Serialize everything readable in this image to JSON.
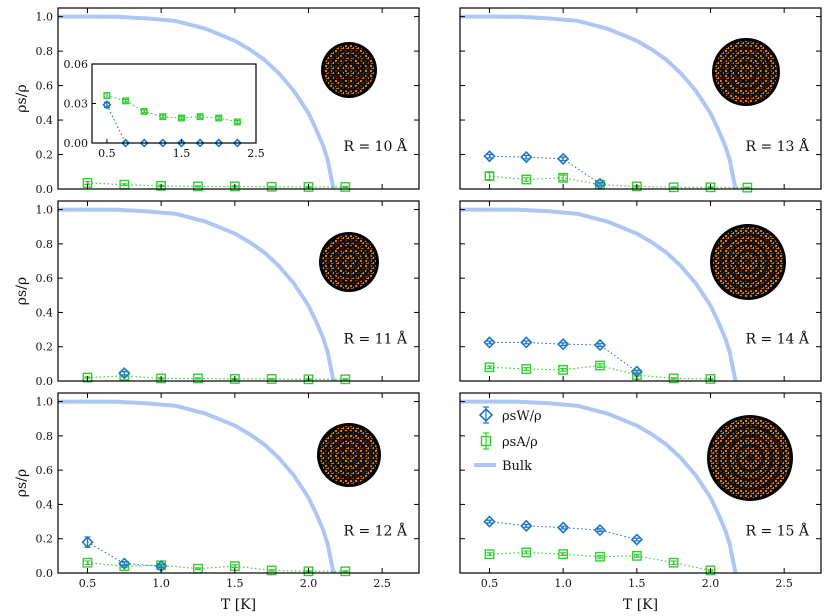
{
  "chart_data": {
    "type": "line",
    "xlabel": "T [K]",
    "ylabel": "ρs/ρ",
    "xlim": [
      0.3,
      2.75
    ],
    "ylim": [
      0.0,
      1.05
    ],
    "xticks": [
      "0.5",
      "1.0",
      "1.5",
      "2.0",
      "2.5"
    ],
    "yticks": [
      "0.0",
      "0.2",
      "0.4",
      "0.6",
      "0.8",
      "1.0"
    ],
    "legend": {
      "placement": "top-left of bottom-right panel",
      "entries": [
        "ρsW/ρ",
        "ρsA/ρ",
        "Bulk"
      ]
    },
    "colors": {
      "wall": "#1f77c4",
      "axis": "#33cc33",
      "bulk": "#aec6f5"
    },
    "bulk": {
      "x": [
        0.3,
        0.5,
        0.7,
        0.9,
        1.1,
        1.3,
        1.5,
        1.6,
        1.7,
        1.8,
        1.9,
        2.0,
        2.05,
        2.1,
        2.13,
        2.17
      ],
      "y": [
        1.0,
        1.0,
        0.999,
        0.99,
        0.975,
        0.93,
        0.86,
        0.81,
        0.75,
        0.67,
        0.57,
        0.44,
        0.35,
        0.25,
        0.17,
        0.0
      ]
    },
    "panels": [
      {
        "label": "R = 10 Å",
        "wall": {
          "x": [],
          "y": [],
          "err": []
        },
        "axis": {
          "x": [
            0.5,
            0.75,
            1.0,
            1.25,
            1.5,
            1.75,
            2.0,
            2.25
          ],
          "y": [
            0.035,
            0.025,
            0.018,
            0.015,
            0.015,
            0.013,
            0.012,
            0.012
          ],
          "err": [
            0.008,
            0.005,
            0.004,
            0.003,
            0.003,
            0.003,
            0.003,
            0.003
          ]
        },
        "inset": {
          "xlim": [
            0.3,
            2.5
          ],
          "ylim": [
            0.0,
            0.06
          ],
          "xticks": [
            "0.5",
            "1.5",
            "2.5"
          ],
          "yticks": [
            "0.00",
            "0.03",
            "0.06"
          ],
          "wall": {
            "x": [
              0.5,
              0.75,
              1.0,
              1.25,
              1.5,
              1.75,
              2.0,
              2.25
            ],
            "y": [
              0.029,
              0.0,
              0.0,
              0.0,
              0.0,
              0.0,
              0.0,
              0.0
            ],
            "err": [
              0.002,
              0,
              0,
              0,
              0,
              0,
              0,
              0
            ]
          },
          "axis": {
            "x": [
              0.5,
              0.75,
              1.0,
              1.25,
              1.5,
              1.75,
              2.0,
              2.25
            ],
            "y": [
              0.036,
              0.032,
              0.024,
              0.02,
              0.019,
              0.02,
              0.019,
              0.016
            ],
            "err": [
              0.002,
              0.001,
              0.001,
              0.001,
              0.001,
              0.001,
              0.001,
              0.001
            ]
          }
        }
      },
      {
        "label": "R = 13 Å",
        "wall": {
          "x": [
            0.5,
            0.75,
            1.0,
            1.25
          ],
          "y": [
            0.19,
            0.185,
            0.175,
            0.03
          ],
          "err": [
            0.01,
            0.01,
            0.01,
            0.008
          ]
        },
        "axis": {
          "x": [
            0.5,
            0.75,
            1.0,
            1.25,
            1.5,
            1.75,
            2.0,
            2.25
          ],
          "y": [
            0.075,
            0.055,
            0.065,
            0.025,
            0.015,
            0.01,
            0.01,
            0.008
          ],
          "err": [
            0.02,
            0.01,
            0.015,
            0.008,
            0.004,
            0.003,
            0.003,
            0.003
          ]
        }
      },
      {
        "label": "R = 11 Å",
        "wall": {
          "x": [
            0.75
          ],
          "y": [
            0.045
          ],
          "err": [
            0.01
          ]
        },
        "axis": {
          "x": [
            0.5,
            0.75,
            1.0,
            1.25,
            1.5,
            1.75,
            2.0,
            2.25
          ],
          "y": [
            0.02,
            0.03,
            0.015,
            0.015,
            0.012,
            0.012,
            0.01,
            0.01
          ],
          "err": [
            0.004,
            0.006,
            0.003,
            0.003,
            0.003,
            0.003,
            0.003,
            0.003
          ]
        }
      },
      {
        "label": "R = 14 Å",
        "wall": {
          "x": [
            0.5,
            0.75,
            1.0,
            1.25,
            1.5
          ],
          "y": [
            0.225,
            0.225,
            0.215,
            0.21,
            0.055
          ],
          "err": [
            0.008,
            0.008,
            0.008,
            0.008,
            0.008
          ]
        },
        "axis": {
          "x": [
            0.5,
            0.75,
            1.0,
            1.25,
            1.5,
            1.75,
            2.0
          ],
          "y": [
            0.08,
            0.07,
            0.065,
            0.09,
            0.035,
            0.015,
            0.012
          ],
          "err": [
            0.008,
            0.008,
            0.008,
            0.01,
            0.006,
            0.004,
            0.003
          ]
        }
      },
      {
        "label": "R = 12 Å",
        "wall": {
          "x": [
            0.5,
            0.75,
            1.0
          ],
          "y": [
            0.18,
            0.055,
            0.04
          ],
          "err": [
            0.03,
            0.01,
            0.008
          ]
        },
        "axis": {
          "x": [
            0.5,
            0.75,
            1.0,
            1.25,
            1.5,
            1.75,
            2.0,
            2.25
          ],
          "y": [
            0.06,
            0.04,
            0.045,
            0.025,
            0.04,
            0.015,
            0.01,
            0.01
          ],
          "err": [
            0.01,
            0.008,
            0.008,
            0.005,
            0.008,
            0.004,
            0.003,
            0.003
          ]
        }
      },
      {
        "label": "R = 15 Å",
        "wall": {
          "x": [
            0.5,
            0.75,
            1.0,
            1.25,
            1.5
          ],
          "y": [
            0.3,
            0.275,
            0.265,
            0.25,
            0.195
          ],
          "err": [
            0.008,
            0.008,
            0.008,
            0.008,
            0.008
          ]
        },
        "axis": {
          "x": [
            0.5,
            0.75,
            1.0,
            1.25,
            1.5,
            1.75,
            2.0
          ],
          "y": [
            0.11,
            0.12,
            0.11,
            0.095,
            0.1,
            0.06,
            0.015
          ],
          "err": [
            0.008,
            0.008,
            0.008,
            0.008,
            0.008,
            0.01,
            0.004
          ]
        }
      }
    ]
  }
}
